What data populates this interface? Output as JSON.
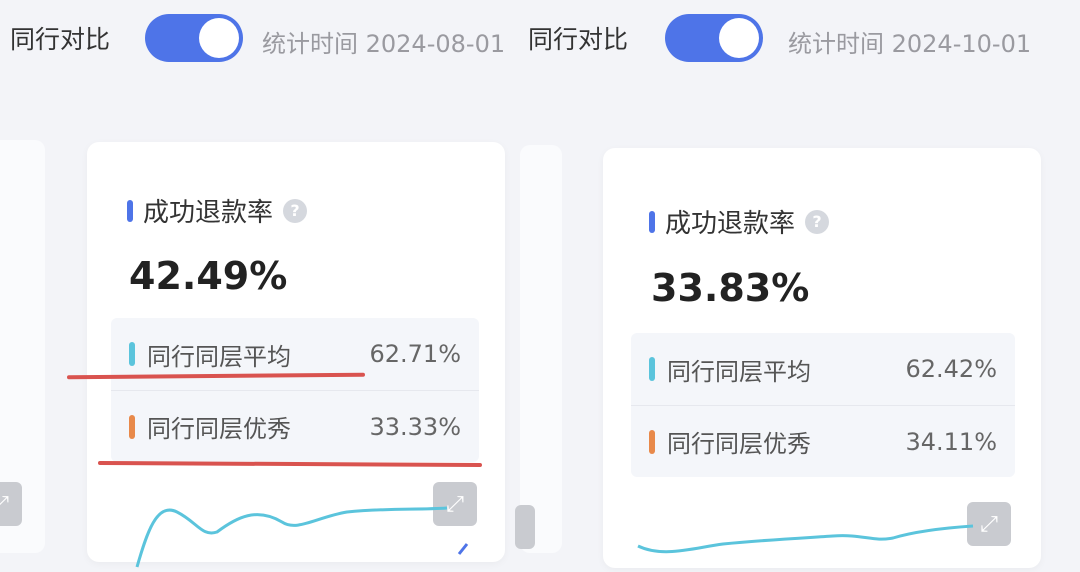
{
  "left": {
    "compare_label": "同行对比",
    "toggle_on": true,
    "stat_time": "统计时间 2024-08-01",
    "card": {
      "title": "成功退款率",
      "value": "42.49%",
      "rows": [
        {
          "label": "同行同层平均",
          "value": "62.71%",
          "color": "#5bc4dc"
        },
        {
          "label": "同行同层优秀",
          "value": "33.33%",
          "color": "#e8894a"
        }
      ]
    }
  },
  "right": {
    "compare_label": "同行对比",
    "toggle_on": true,
    "stat_time": "统计时间 2024-10-01",
    "card": {
      "title": "成功退款率",
      "value": "33.83%",
      "rows": [
        {
          "label": "同行同层平均",
          "value": "62.42%",
          "color": "#5bc4dc"
        },
        {
          "label": "同行同层优秀",
          "value": "34.11%",
          "color": "#e8894a"
        }
      ]
    }
  },
  "icons": {
    "help": "?",
    "expand": "⤢"
  },
  "colors": {
    "accent": "#4e74e8",
    "annotation": "#d9534f"
  }
}
